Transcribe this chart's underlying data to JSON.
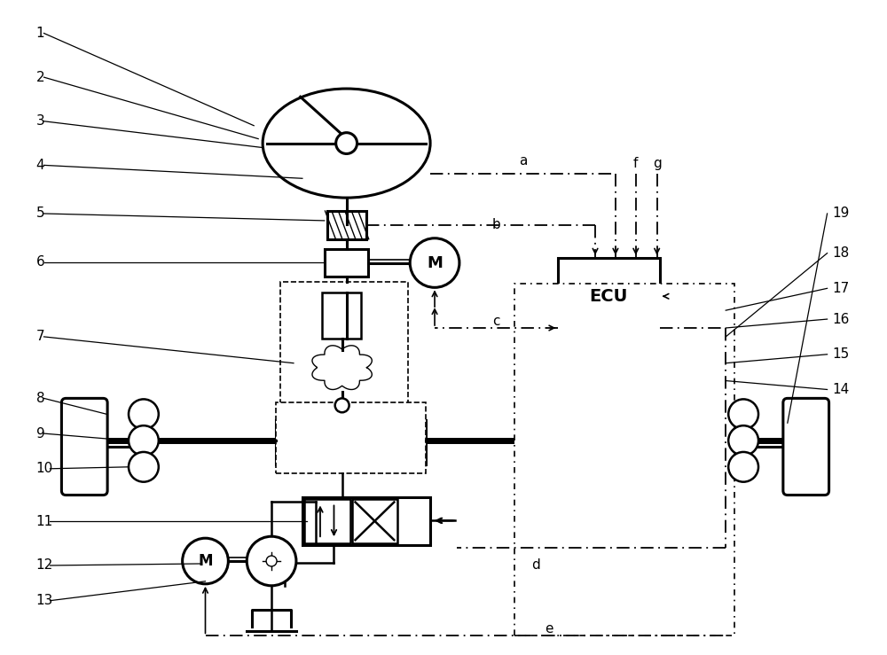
{
  "bg_color": "#ffffff",
  "line_color": "#000000",
  "fig_width": 10.0,
  "fig_height": 7.39,
  "dpi": 100,
  "ecu_label": "ECU",
  "motor_label": "M",
  "motor2_label": "M"
}
